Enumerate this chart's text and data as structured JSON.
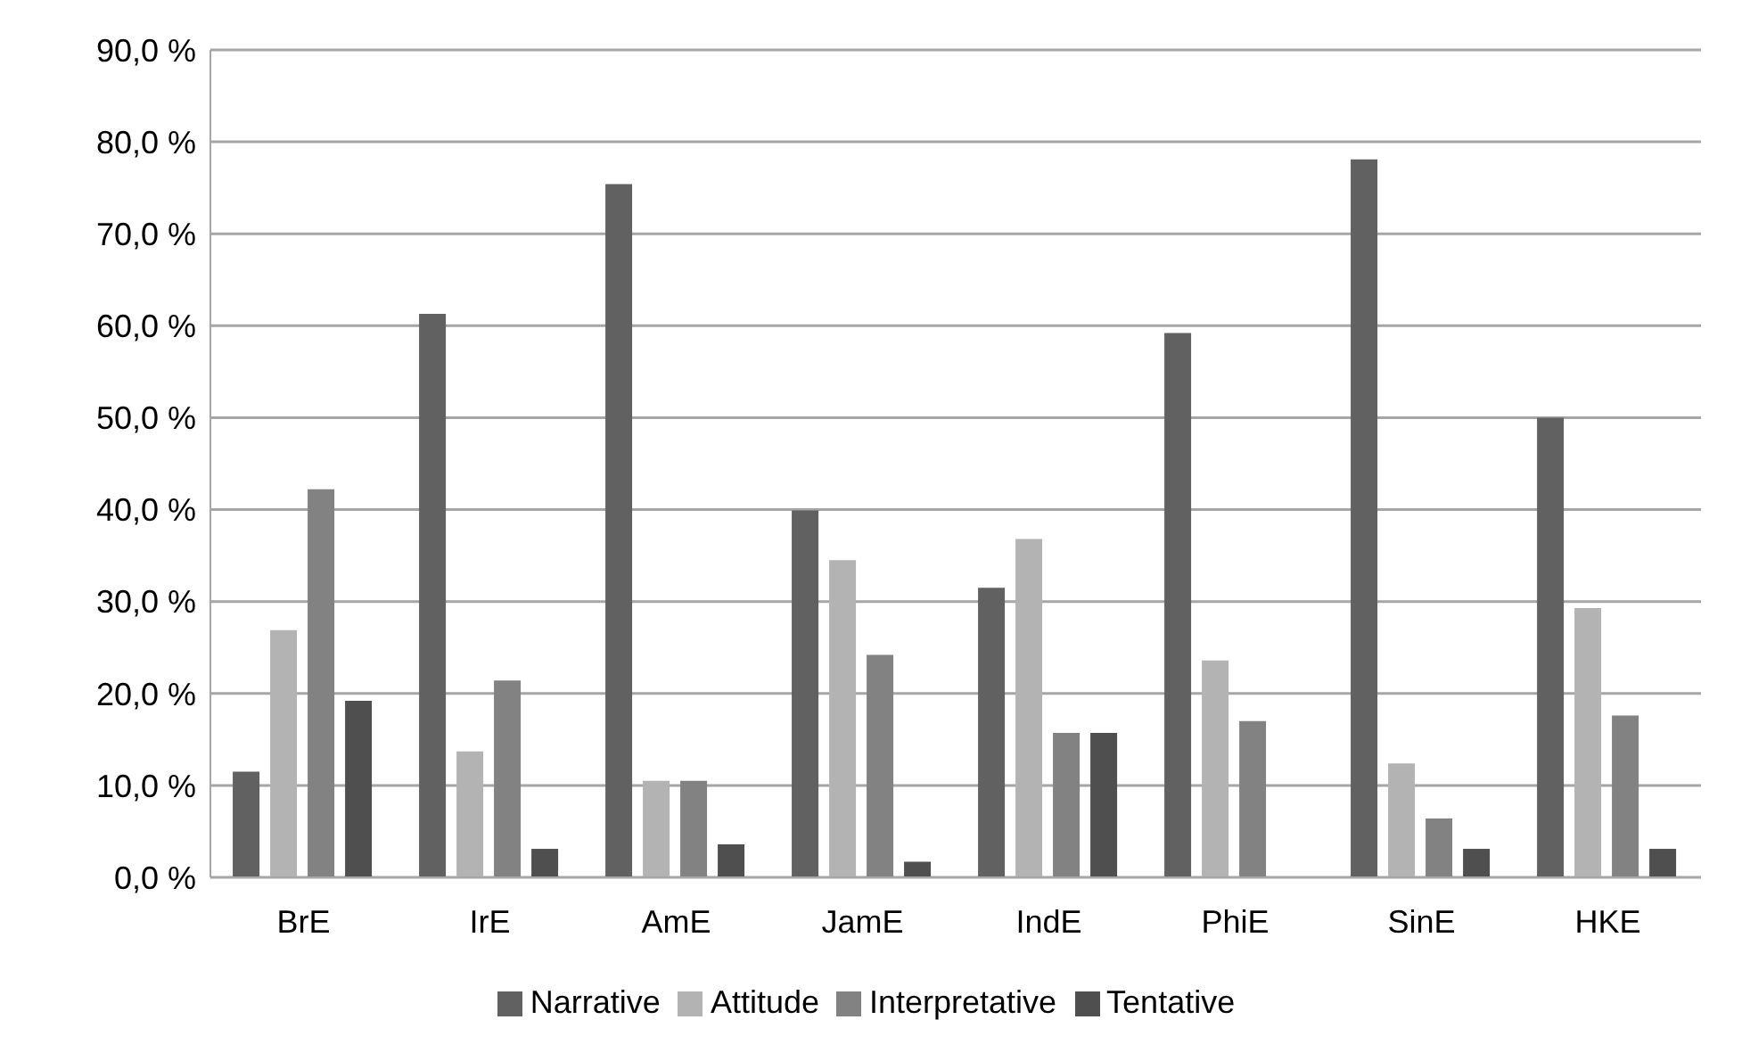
{
  "chart_data": {
    "type": "bar",
    "categories": [
      "BrE",
      "IrE",
      "AmE",
      "JamE",
      "IndE",
      "PhiE",
      "SinE",
      "HKE"
    ],
    "series": [
      {
        "name": "Narrative",
        "color": "#616161",
        "values": [
          11.5,
          61.3,
          75.4,
          39.9,
          31.5,
          59.2,
          78.1,
          50.0
        ]
      },
      {
        "name": "Attitude",
        "color": "#b3b3b3",
        "values": [
          26.9,
          13.7,
          10.5,
          34.5,
          36.8,
          23.6,
          12.4,
          29.3
        ]
      },
      {
        "name": "Interpretative",
        "color": "#828282",
        "values": [
          42.2,
          21.4,
          10.5,
          24.2,
          15.7,
          17.0,
          6.4,
          17.6
        ]
      },
      {
        "name": "Tentative",
        "color": "#4f4f4f",
        "values": [
          19.2,
          3.1,
          3.6,
          1.7,
          15.7,
          0,
          3.1,
          3.1
        ]
      }
    ],
    "ylim": [
      0,
      90
    ],
    "yticks": [
      {
        "value": 0,
        "label": "0,0 %"
      },
      {
        "value": 10,
        "label": "10,0 %"
      },
      {
        "value": 20,
        "label": "20,0 %"
      },
      {
        "value": 30,
        "label": "30,0 %"
      },
      {
        "value": 40,
        "label": "40,0 %"
      },
      {
        "value": 50,
        "label": "50,0 %"
      },
      {
        "value": 60,
        "label": "60,0 %"
      },
      {
        "value": 70,
        "label": "70,0 %"
      },
      {
        "value": 80,
        "label": "80,0 %"
      },
      {
        "value": 90,
        "label": "90,0 %"
      }
    ],
    "grid": "y",
    "legend": "bottom"
  }
}
